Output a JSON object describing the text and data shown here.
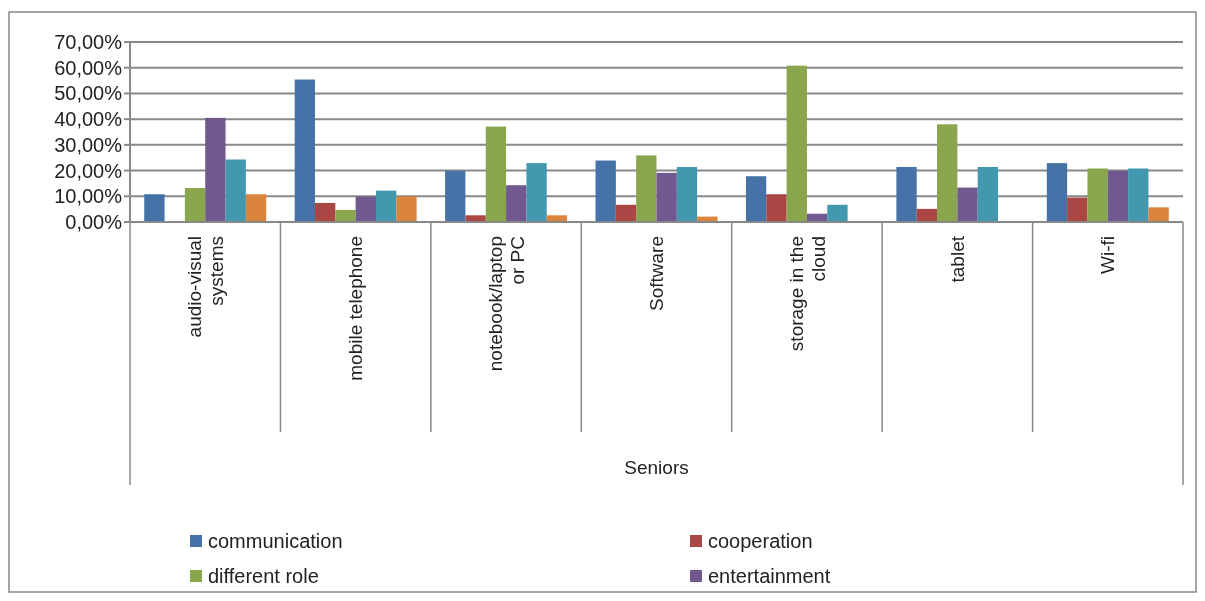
{
  "chart_data": {
    "type": "bar",
    "xlabel": "Seniors",
    "categories": [
      "audio-visual systems",
      "mobile telephone",
      "notebook/laptop or PC",
      "Software",
      "storage in the cloud",
      "tablet",
      "Wi-fi"
    ],
    "series": [
      {
        "name": "communication",
        "color": "#4572a7",
        "values": [
          10.8,
          55.4,
          19.9,
          23.9,
          17.8,
          21.4,
          22.9
        ]
      },
      {
        "name": "cooperation",
        "color": "#aa4643",
        "values": [
          0,
          7.4,
          2.6,
          6.7,
          10.8,
          5.1,
          9.5
        ]
      },
      {
        "name": "different role",
        "color": "#89a54e",
        "values": [
          13.2,
          4.7,
          37.1,
          25.9,
          60.8,
          38.0,
          20.8
        ]
      },
      {
        "name": "entertainment",
        "color": "#71588f",
        "values": [
          40.5,
          9.9,
          14.3,
          19.1,
          3.2,
          13.4,
          19.9
        ]
      },
      {
        "color": "#4198af",
        "values": [
          24.3,
          12.2,
          22.9,
          21.4,
          6.7,
          21.4,
          20.8
        ]
      },
      {
        "color": "#db843d",
        "values": [
          10.8,
          9.9,
          2.6,
          2.1,
          0,
          0,
          5.7
        ]
      }
    ],
    "ylim": [
      0,
      70
    ],
    "yticks": [
      {
        "value": 0,
        "label": "0,00%"
      },
      {
        "value": 10,
        "label": "10,00%"
      },
      {
        "value": 20,
        "label": "20,00%"
      },
      {
        "value": 30,
        "label": "30,00%"
      },
      {
        "value": 40,
        "label": "40,00%"
      },
      {
        "value": 50,
        "label": "50,00%"
      },
      {
        "value": 60,
        "label": "60,00%"
      },
      {
        "value": 70,
        "label": "70,00%"
      }
    ],
    "grid": "y",
    "legend": "bottom"
  }
}
